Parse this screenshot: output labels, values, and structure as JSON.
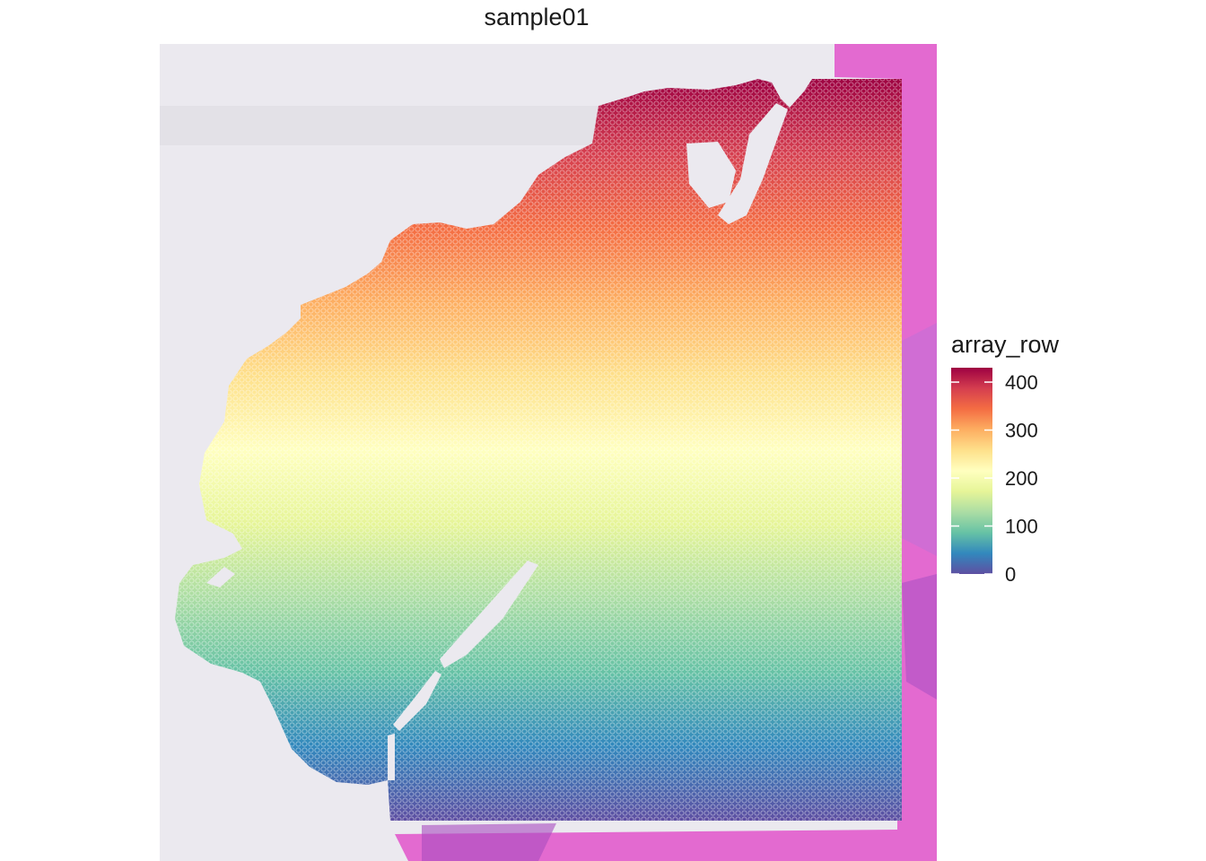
{
  "chart_data": {
    "type": "scatter",
    "title": "sample01",
    "xlabel": "",
    "ylabel": "",
    "grid": false,
    "background": "H&E tissue image",
    "color_variable": "array_row",
    "color_scale": "Spectral",
    "color_stops": [
      "#5E4FA2",
      "#3288BD",
      "#66C2A5",
      "#ABDDA4",
      "#E6F598",
      "#FFFFBF",
      "#FEE08B",
      "#FDAE61",
      "#F46D43",
      "#D53E4F",
      "#9E0142"
    ],
    "point_stroke": "#ffffff",
    "y_range": [
      0,
      430
    ],
    "legend": {
      "title": "array_row",
      "placement": "right",
      "ticks": [
        0,
        100,
        200,
        300,
        400
      ],
      "tick_labels": [
        "0",
        "100",
        "200",
        "300",
        "400"
      ]
    }
  }
}
